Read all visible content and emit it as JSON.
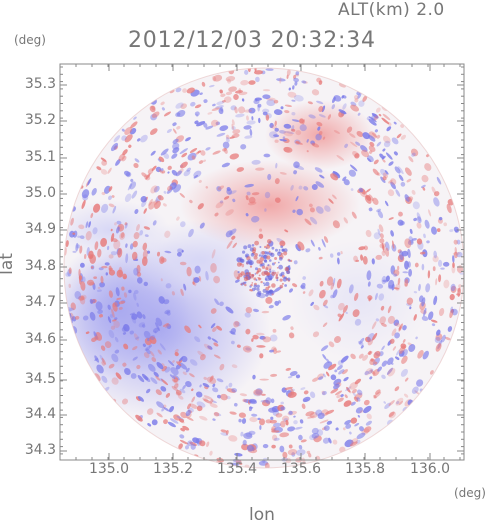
{
  "header": {
    "altitude": "ALT(km)  2.0",
    "datetime": "2012/12/03 20:32:34"
  },
  "axes": {
    "deg_left": "(deg)",
    "deg_right": "(deg)",
    "ylabel": "lat",
    "xlabel": "lon",
    "yticks": [
      "35.3",
      "35.2",
      "35.1",
      "35.0",
      "34.9",
      "34.8",
      "34.7",
      "34.6",
      "34.5",
      "34.4",
      "34.3"
    ],
    "xticks": [
      "135.0",
      "135.2",
      "135.4",
      "135.6",
      "135.8",
      "136.0"
    ]
  },
  "colors": {
    "positive": "#e05a5a",
    "negative": "#6a6ae6",
    "axis": "#888888"
  }
}
